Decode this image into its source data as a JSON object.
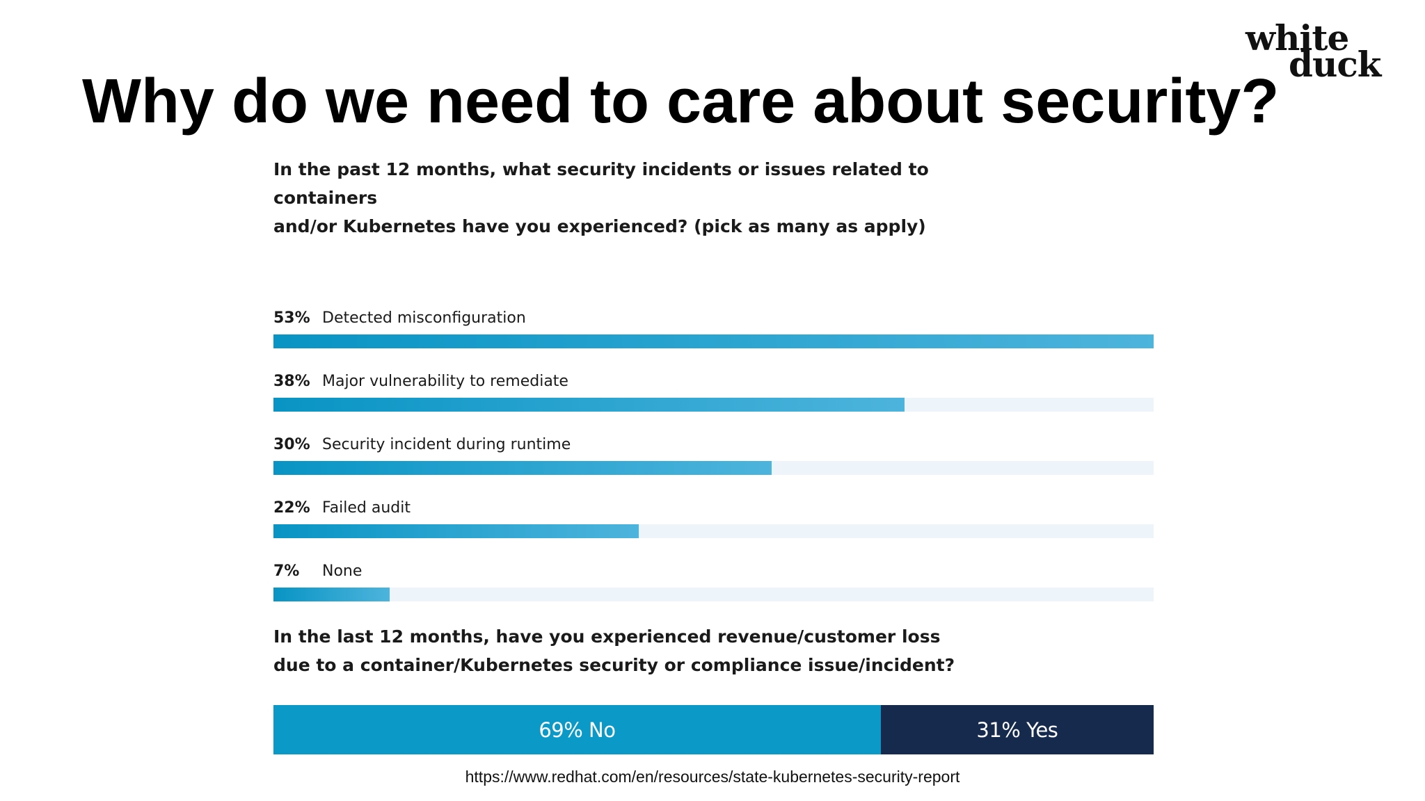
{
  "title": "Why do we need to care about security?",
  "logo": {
    "line1": "white",
    "line2": "duck"
  },
  "colors": {
    "bar_start": "#0894c4",
    "bar_end": "#4db4dc",
    "track": "#eef5fa",
    "segment_no": "#0b9ac8",
    "segment_yes": "#152a4d"
  },
  "chart_data": [
    {
      "type": "bar",
      "orientation": "horizontal",
      "title": "In the past 12 months, what security incidents or issues related to containers and/or Kubernetes have you experienced? (pick as many as apply)",
      "categories": [
        "Detected misconfiguration",
        "Major vulnerability to remediate",
        "Security incident during runtime",
        "Failed audit",
        "None"
      ],
      "values": [
        53,
        38,
        30,
        22,
        7
      ],
      "value_labels": [
        "53%",
        "38%",
        "30%",
        "22%",
        "7%"
      ],
      "unit": "%",
      "xlim": [
        0,
        53
      ],
      "grid": false,
      "legend": "none"
    },
    {
      "type": "bar",
      "orientation": "horizontal",
      "stacked": true,
      "title": "In the last 12 months, have you experienced revenue/customer loss due to a container/Kubernetes security or compliance issue/incident?",
      "categories": [
        "No",
        "Yes"
      ],
      "values": [
        69,
        31
      ],
      "value_labels": [
        "69% No",
        "31% Yes"
      ],
      "unit": "%",
      "grid": false,
      "legend": "none"
    }
  ],
  "q1_line1": "In the past 12 months, what security incidents or issues related to containers",
  "q1_line2": "and/or Kubernetes have you experienced? (pick as many as apply)",
  "q2_line1": "In the last 12 months, have you experienced revenue/customer loss",
  "q2_line2": "due to a container/Kubernetes security or compliance issue/incident?",
  "source": "https://www.redhat.com/en/resources/state-kubernetes-security-report"
}
